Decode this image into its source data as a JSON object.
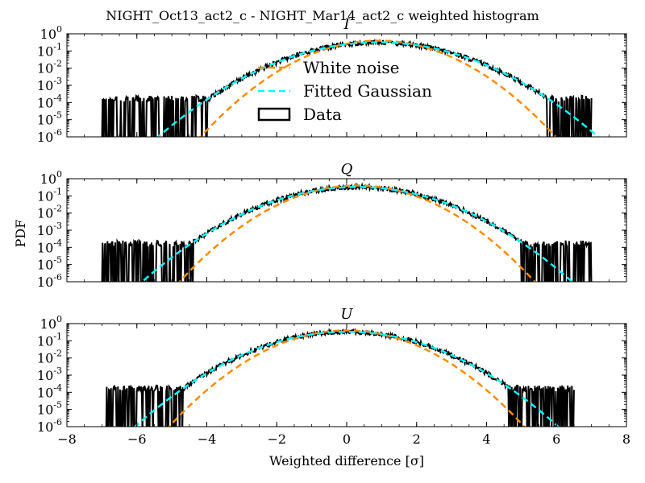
{
  "figure": {
    "title": "NIGHT_Oct13_act2_c - NIGHT_Mar14_act2_c weighted histogram",
    "ylabel": "PDF",
    "xlabel": "Weighted difference [σ]"
  },
  "colors": {
    "white_noise": "#ff8c00",
    "fitted_gaussian": "#00ffff",
    "data": "#000000"
  },
  "legend": {
    "items": [
      {
        "label": "White noise",
        "color": "#ff8c00",
        "style": "dashed"
      },
      {
        "label": "Fitted Gaussian",
        "color": "#00ffff",
        "style": "dashed"
      },
      {
        "label": "Data",
        "color": "#000000",
        "style": "box"
      }
    ]
  },
  "chart_data": [
    {
      "type": "line",
      "title": "I",
      "xlim": [
        -8,
        8
      ],
      "ylim_log10": [
        -6,
        0
      ],
      "yscale": "log",
      "xticks": [
        "−8",
        "−6",
        "−4",
        "−2",
        "0",
        "2",
        "4",
        "6",
        "8"
      ],
      "yticks_exp": [
        "0",
        "-1",
        "-2",
        "-3",
        "-4",
        "-5",
        "-6"
      ],
      "series": [
        {
          "name": "White noise",
          "type": "gaussian",
          "mean": 0.9,
          "sigma": 1.0
        },
        {
          "name": "Fitted Gaussian",
          "type": "gaussian",
          "mean": 0.9,
          "sigma": 1.25
        },
        {
          "name": "Data",
          "type": "histogram",
          "data_range": [
            -7.0,
            7.0
          ],
          "sigma": 1.25,
          "tail_floor_log10": -3.9
        }
      ]
    },
    {
      "type": "line",
      "title": "Q",
      "xlim": [
        -8,
        8
      ],
      "ylim_log10": [
        -6,
        0
      ],
      "yscale": "log",
      "xticks": [
        "−8",
        "−6",
        "−4",
        "−2",
        "0",
        "2",
        "4",
        "6",
        "8"
      ],
      "yticks_exp": [
        "0",
        "-1",
        "-2",
        "-3",
        "-4",
        "-5",
        "-6"
      ],
      "series": [
        {
          "name": "White noise",
          "type": "gaussian",
          "mean": 0.3,
          "sigma": 1.0
        },
        {
          "name": "Fitted Gaussian",
          "type": "gaussian",
          "mean": 0.3,
          "sigma": 1.22
        },
        {
          "name": "Data",
          "type": "histogram",
          "data_range": [
            -7.0,
            7.0
          ],
          "sigma": 1.22,
          "tail_floor_log10": -3.9
        }
      ]
    },
    {
      "type": "line",
      "title": "U",
      "xlim": [
        -8,
        8
      ],
      "ylim_log10": [
        -6,
        0
      ],
      "yscale": "log",
      "xticks": [
        "−8",
        "−6",
        "−4",
        "−2",
        "0",
        "2",
        "4",
        "6",
        "8"
      ],
      "yticks_exp": [
        "0",
        "-1",
        "-2",
        "-3",
        "-4",
        "-5",
        "-6"
      ],
      "series": [
        {
          "name": "White noise",
          "type": "gaussian",
          "mean": 0.0,
          "sigma": 1.0
        },
        {
          "name": "Fitted Gaussian",
          "type": "gaussian",
          "mean": 0.0,
          "sigma": 1.2
        },
        {
          "name": "Data",
          "type": "histogram",
          "data_range": [
            -6.9,
            6.5
          ],
          "sigma": 1.2,
          "tail_floor_log10": -3.9
        }
      ]
    }
  ]
}
